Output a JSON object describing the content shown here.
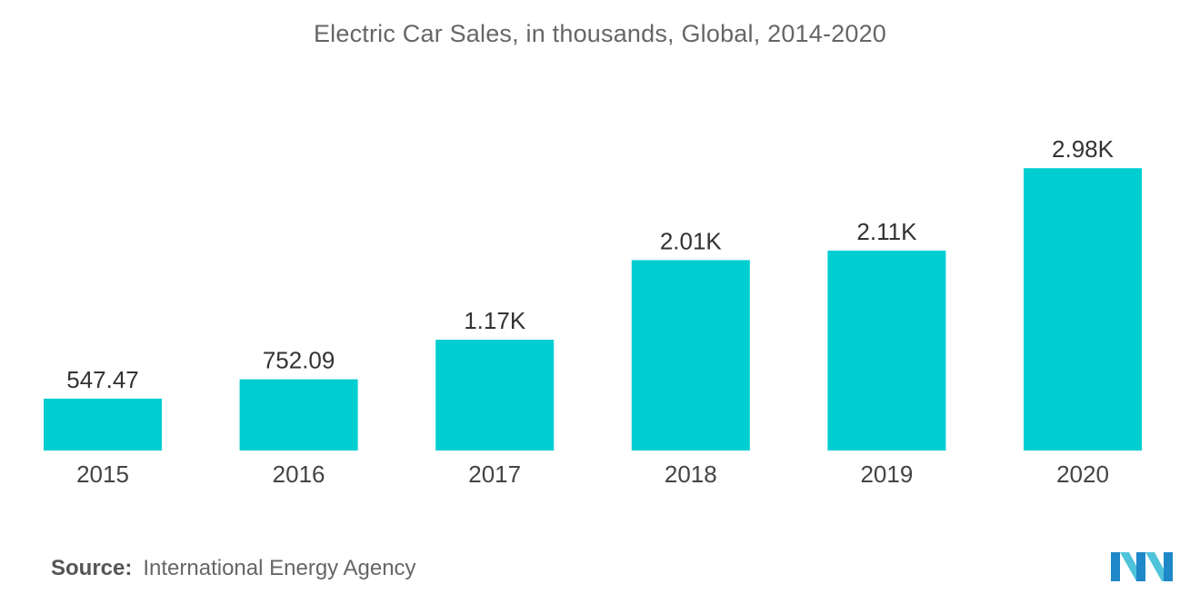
{
  "chart_data": {
    "type": "bar",
    "title": "Electric Car Sales, in thousands, Global, 2014-2020",
    "xlabel": "",
    "ylabel": "",
    "categories": [
      "2015",
      "2016",
      "2017",
      "2018",
      "2019",
      "2020"
    ],
    "values": [
      547.47,
      752.09,
      1170,
      2010,
      2110,
      2980
    ],
    "value_labels": [
      "547.47",
      "752.09",
      "1.17K",
      "2.01K",
      "2.11K",
      "2.98K"
    ],
    "ylim": [
      0,
      3000
    ],
    "grid": false,
    "bar_color": "#00CED1"
  },
  "source": {
    "label": "Source:",
    "text": "International Energy Agency"
  },
  "brand": {
    "logo_icon": "mordor-intelligence-logo-icon",
    "colors": [
      "#1E88C8",
      "#4FC3D9"
    ]
  }
}
